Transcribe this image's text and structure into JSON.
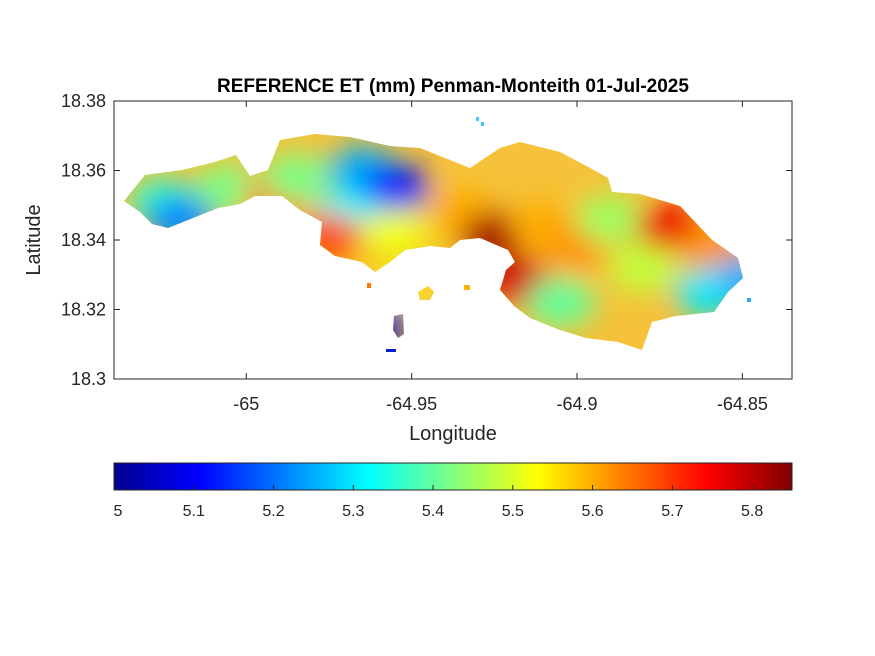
{
  "chart_data": {
    "type": "heatmap",
    "title": "REFERENCE ET (mm) Penman-Monteith 01-Jul-2025",
    "xlabel": "Longitude",
    "ylabel": "Latitude",
    "xlim": [
      -65.04,
      -64.835
    ],
    "ylim": [
      18.3,
      18.38
    ],
    "x_ticks": [
      -65,
      -64.95,
      -64.9,
      -64.85
    ],
    "x_tick_labels": [
      "-65",
      "-64.95",
      "-64.9",
      "-64.85"
    ],
    "y_ticks": [
      18.3,
      18.32,
      18.34,
      18.36,
      18.38
    ],
    "y_tick_labels": [
      "18.3",
      "18.32",
      "18.34",
      "18.36",
      "18.38"
    ],
    "colormap": "jet",
    "colorbar": {
      "location": "below",
      "range": [
        5.0,
        5.85
      ],
      "ticks": [
        5,
        5.1,
        5.2,
        5.3,
        5.4,
        5.5,
        5.6,
        5.7,
        5.8
      ],
      "tick_labels": [
        "5",
        "5.1",
        "5.2",
        "5.3",
        "5.4",
        "5.5",
        "5.6",
        "5.7",
        "5.8"
      ]
    },
    "grid": false,
    "regions": [
      {
        "lon": -65.025,
        "lat": 18.351,
        "value": 5.36
      },
      {
        "lon": -65.02,
        "lat": 18.346,
        "value": 5.22
      },
      {
        "lon": -65.005,
        "lat": 18.355,
        "value": 5.42
      },
      {
        "lon": -64.99,
        "lat": 18.354,
        "value": 5.65
      },
      {
        "lon": -64.985,
        "lat": 18.358,
        "value": 5.42
      },
      {
        "lon": -64.965,
        "lat": 18.36,
        "value": 5.25
      },
      {
        "lon": -64.955,
        "lat": 18.355,
        "value": 5.12
      },
      {
        "lon": -64.97,
        "lat": 18.347,
        "value": 5.32
      },
      {
        "lon": -64.975,
        "lat": 18.341,
        "value": 5.68
      },
      {
        "lon": -64.955,
        "lat": 18.342,
        "value": 5.52
      },
      {
        "lon": -64.935,
        "lat": 18.348,
        "value": 5.6
      },
      {
        "lon": -64.925,
        "lat": 18.341,
        "value": 5.82
      },
      {
        "lon": -64.918,
        "lat": 18.328,
        "value": 5.78
      },
      {
        "lon": -64.91,
        "lat": 18.344,
        "value": 5.6
      },
      {
        "lon": -64.9,
        "lat": 18.338,
        "value": 5.62
      },
      {
        "lon": -64.905,
        "lat": 18.322,
        "value": 5.4
      },
      {
        "lon": -64.89,
        "lat": 18.346,
        "value": 5.45
      },
      {
        "lon": -64.88,
        "lat": 18.332,
        "value": 5.48
      },
      {
        "lon": -64.872,
        "lat": 18.344,
        "value": 5.76
      },
      {
        "lon": -64.858,
        "lat": 18.338,
        "value": 5.62
      },
      {
        "lon": -64.86,
        "lat": 18.325,
        "value": 5.3
      },
      {
        "lon": -64.848,
        "lat": 18.329,
        "value": 5.25
      },
      {
        "lon": -64.954,
        "lat": 18.325,
        "value": 5.55
      },
      {
        "lon": -64.96,
        "lat": 18.316,
        "value": 5.05
      }
    ]
  }
}
